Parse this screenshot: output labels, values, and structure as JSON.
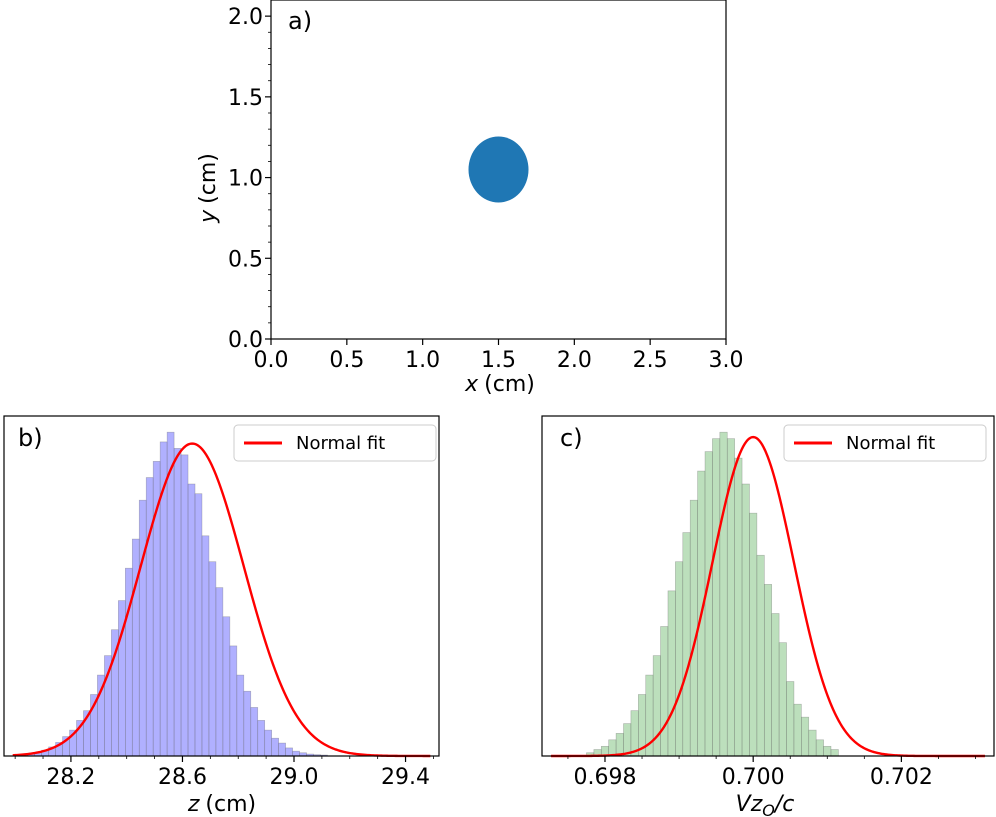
{
  "chart_data": [
    {
      "panel_label": "a)",
      "type": "scatter",
      "x": [
        1.5
      ],
      "y": [
        1.05
      ],
      "marker": "circle",
      "marker_color": "#1f77b4",
      "xlabel_var": "x",
      "xlabel_unit": "(cm)",
      "ylabel_var": "y",
      "ylabel_unit": "(cm)",
      "xlim": [
        0,
        3.0
      ],
      "ylim": [
        0,
        2.1
      ],
      "xticks": [
        0.0,
        0.5,
        1.0,
        1.5,
        2.0,
        2.5,
        3.0
      ],
      "xtick_labels": [
        "0.0",
        "0.5",
        "1.0",
        "1.5",
        "2.0",
        "2.5",
        "3.0"
      ],
      "yticks": [
        0.0,
        0.5,
        1.0,
        1.5,
        2.0
      ],
      "ytick_labels": [
        "0.0",
        "0.5",
        "1.0",
        "1.5",
        "2.0"
      ],
      "grid": false
    },
    {
      "panel_label": "b)",
      "type": "bar",
      "hist_bin_start": 28.02,
      "hist_bin_width": 0.025,
      "hist_counts": [
        0.005,
        0.008,
        0.012,
        0.018,
        0.028,
        0.042,
        0.06,
        0.08,
        0.11,
        0.14,
        0.19,
        0.25,
        0.31,
        0.39,
        0.48,
        0.58,
        0.67,
        0.79,
        0.86,
        0.91,
        0.97,
        1.0,
        0.95,
        0.93,
        0.84,
        0.81,
        0.68,
        0.6,
        0.52,
        0.43,
        0.34,
        0.25,
        0.2,
        0.15,
        0.11,
        0.08,
        0.055,
        0.04,
        0.025,
        0.015,
        0.01,
        0.006,
        0.004,
        0.003
      ],
      "hist_color": "#7b7bff",
      "fit": {
        "name": "Normal fit",
        "mean": 28.635,
        "std": 0.185,
        "peak": 0.965,
        "color": "#ff0000"
      },
      "xlabel_var": "z",
      "xlabel_unit": "(cm)",
      "xlim": [
        27.96,
        29.52
      ],
      "ylim": [
        0,
        1.05
      ],
      "xticks": [
        28.2,
        28.6,
        29.0,
        29.4
      ],
      "xtick_labels": [
        "28.2",
        "28.6",
        "29.0",
        "29.4"
      ],
      "minor_xtick_step": 0.1,
      "legend_label": "Normal fit",
      "legend_position": "upper right",
      "grid": false
    },
    {
      "panel_label": "c)",
      "type": "bar",
      "hist_bin_start": 0.69775,
      "hist_bin_width": 0.0001,
      "hist_counts": [
        0.01,
        0.02,
        0.03,
        0.05,
        0.07,
        0.1,
        0.14,
        0.19,
        0.25,
        0.31,
        0.4,
        0.51,
        0.6,
        0.69,
        0.79,
        0.88,
        0.94,
        0.98,
        1.0,
        0.98,
        0.92,
        0.84,
        0.75,
        0.62,
        0.53,
        0.44,
        0.35,
        0.23,
        0.16,
        0.12,
        0.08,
        0.05,
        0.03,
        0.02
      ],
      "hist_color": "#8fc98f",
      "fit": {
        "name": "Normal fit",
        "mean": 0.7,
        "std": 0.00055,
        "peak": 0.985,
        "color": "#ff0000"
      },
      "xlabel_var": "Vz",
      "xlabel_sub": "O",
      "xlabel_unit": "/c",
      "xlim": [
        0.69715,
        0.70325
      ],
      "ylim": [
        0,
        1.05
      ],
      "xticks": [
        0.698,
        0.7,
        0.702
      ],
      "xtick_labels": [
        "0.698",
        "0.700",
        "0.702"
      ],
      "minor_xtick_step": 0.0005,
      "legend_label": "Normal fit",
      "legend_position": "upper right",
      "grid": false
    }
  ]
}
